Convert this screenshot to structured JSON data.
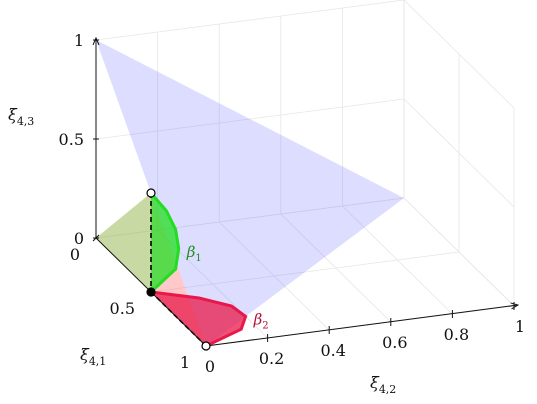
{
  "chart_data": {
    "type": "surface-3d",
    "axes": {
      "x": {
        "label": "ξ",
        "label_sub": "4,1",
        "ticks": [
          {
            "v": 0,
            "t": "0"
          },
          {
            "v": 0.5,
            "t": "0.5"
          },
          {
            "v": 1,
            "t": "1"
          }
        ],
        "range": [
          0,
          1
        ]
      },
      "y": {
        "label": "ξ",
        "label_sub": "4,2",
        "ticks": [
          {
            "v": 0,
            "t": "0"
          },
          {
            "v": 0.2,
            "t": "0.2"
          },
          {
            "v": 0.4,
            "t": "0.4"
          },
          {
            "v": 0.6,
            "t": "0.6"
          },
          {
            "v": 0.8,
            "t": "0.8"
          },
          {
            "v": 1,
            "t": "1"
          }
        ],
        "range": [
          0,
          1
        ]
      },
      "z": {
        "label": "ξ",
        "label_sub": "4,3",
        "ticks": [
          {
            "v": 0,
            "t": "0"
          },
          {
            "v": 0.5,
            "t": "0.5"
          },
          {
            "v": 1,
            "t": "1"
          }
        ],
        "range": [
          0,
          1
        ]
      }
    },
    "grid": true,
    "regions": [
      {
        "name": "",
        "color": "#6464ff",
        "opacity": 0.22,
        "vertices": [
          [
            1,
            0,
            0
          ],
          [
            0,
            1,
            0
          ],
          [
            0,
            0,
            1
          ]
        ]
      },
      {
        "name": "",
        "color": "#ff4d4d",
        "opacity": 0.3,
        "vertices": [
          [
            0,
            0,
            0
          ],
          [
            1,
            0,
            0
          ],
          [
            0.5,
            0,
            0.5
          ]
        ]
      },
      {
        "name": "",
        "color": "#4dff4d",
        "opacity": 0.3,
        "vertices": [
          [
            0,
            0,
            0
          ],
          [
            0.5,
            0,
            0.5
          ],
          [
            0.5,
            0,
            0
          ]
        ]
      }
    ],
    "curves": [
      {
        "name": "β",
        "name_sub": "1",
        "color": "#1f8f1f",
        "fill": "#22dd22",
        "points": [
          [
            0.5,
            0,
            0.5
          ],
          [
            0.5,
            0.05,
            0.4
          ],
          [
            0.5,
            0.08,
            0.3
          ],
          [
            0.5,
            0.09,
            0.2
          ],
          [
            0.5,
            0.08,
            0.1
          ],
          [
            0.5,
            0,
            0
          ]
        ]
      },
      {
        "name": "β",
        "name_sub": "2",
        "color": "#b0103a",
        "fill": "#e8184a",
        "points": [
          [
            0.5,
            0,
            0
          ],
          [
            0.6,
            0.12,
            0
          ],
          [
            0.7,
            0.19,
            0
          ],
          [
            0.8,
            0.2,
            0
          ],
          [
            0.9,
            0.15,
            0
          ],
          [
            1,
            0,
            0
          ]
        ]
      }
    ],
    "special_points": [
      {
        "kind": "open",
        "coords": [
          0.5,
          0,
          0.5
        ]
      },
      {
        "kind": "filled",
        "coords": [
          0.5,
          0,
          0
        ]
      },
      {
        "kind": "open",
        "coords": [
          1,
          0,
          0
        ]
      }
    ]
  },
  "colors": {
    "grid": "#e6e6e6",
    "axis": "#111111"
  }
}
